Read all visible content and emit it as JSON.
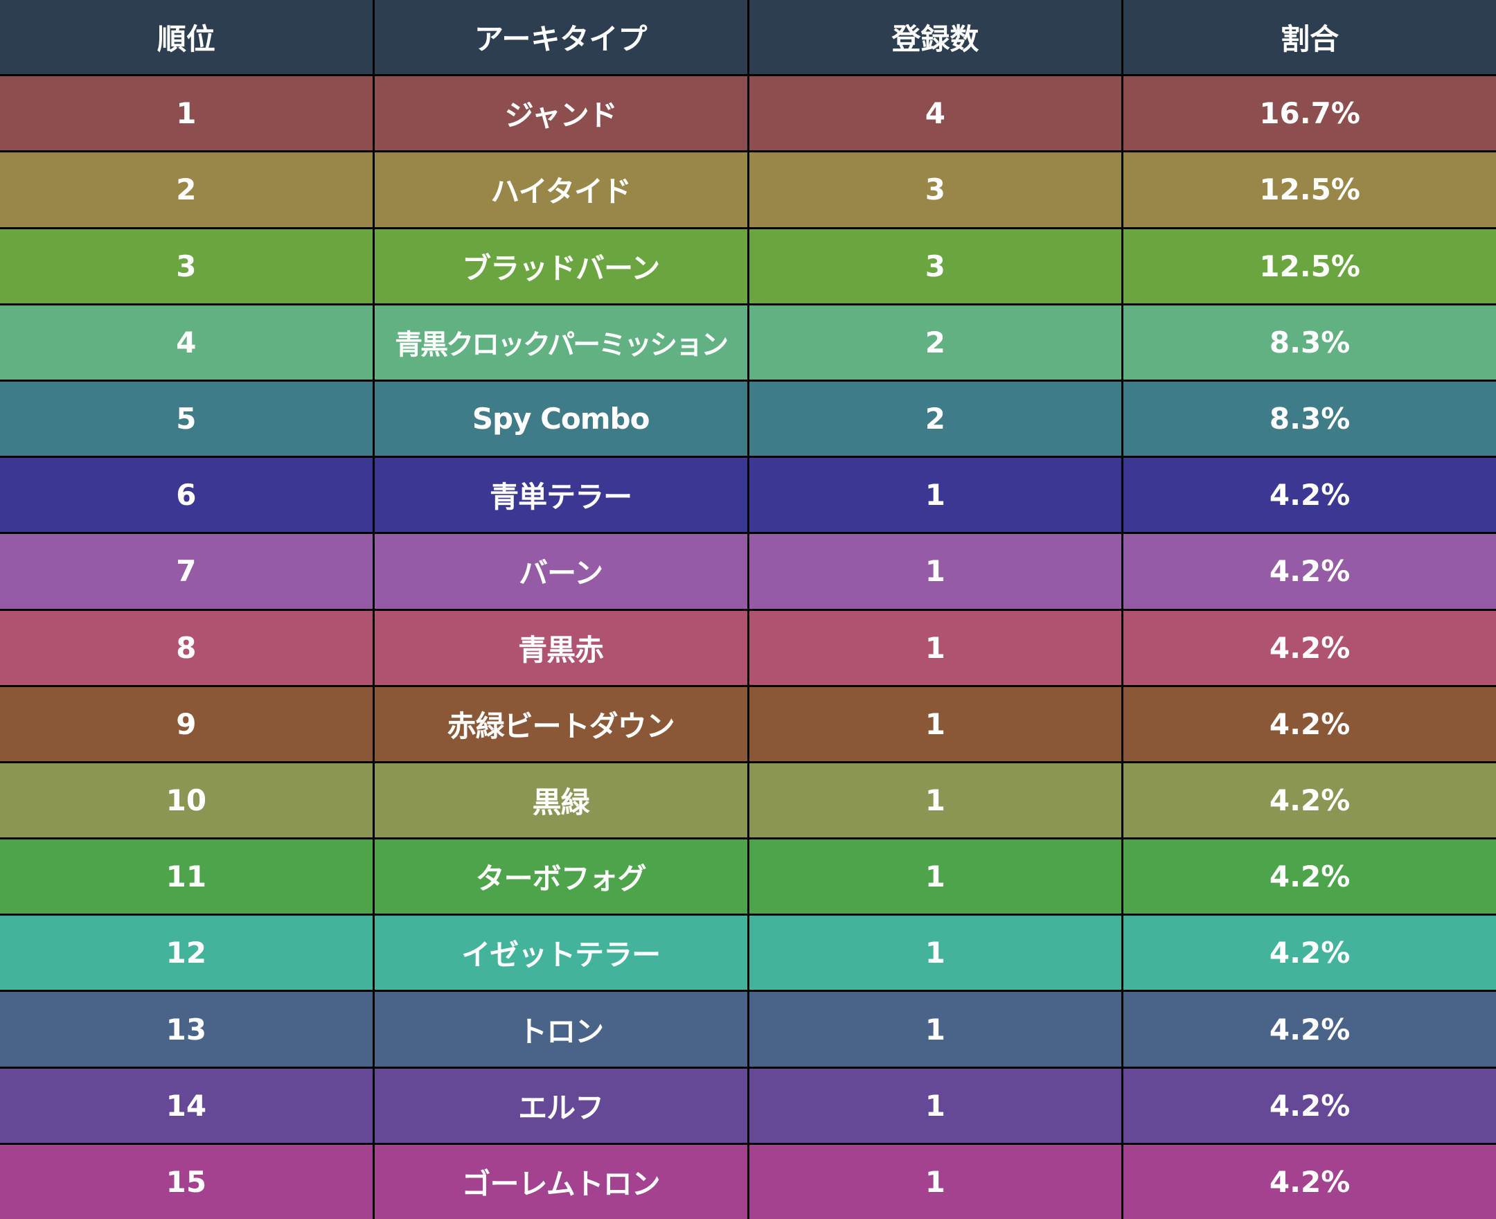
{
  "chart_data": {
    "type": "table",
    "columns": [
      "順位",
      "アーキタイプ",
      "登録数",
      "割合"
    ],
    "rows": [
      {
        "rank": "1",
        "archetype": "ジャンド",
        "count": "4",
        "share": "16.7%",
        "color": "#8c4e4e"
      },
      {
        "rank": "2",
        "archetype": "ハイタイド",
        "count": "3",
        "share": "12.5%",
        "color": "#988747"
      },
      {
        "rank": "3",
        "archetype": "ブラッドバーン",
        "count": "3",
        "share": "12.5%",
        "color": "#6ba540"
      },
      {
        "rank": "4",
        "archetype": "青黒クロックパーミッション",
        "count": "2",
        "share": "8.3%",
        "color": "#62b183"
      },
      {
        "rank": "5",
        "archetype": "Spy Combo",
        "count": "2",
        "share": "8.3%",
        "color": "#3f7c88"
      },
      {
        "rank": "6",
        "archetype": "青単テラー",
        "count": "1",
        "share": "4.2%",
        "color": "#3b3893"
      },
      {
        "rank": "7",
        "archetype": "バーン",
        "count": "1",
        "share": "4.2%",
        "color": "#955ba4"
      },
      {
        "rank": "8",
        "archetype": "青黒赤",
        "count": "1",
        "share": "4.2%",
        "color": "#b0536f"
      },
      {
        "rank": "9",
        "archetype": "赤緑ビートダウン",
        "count": "1",
        "share": "4.2%",
        "color": "#8a5837"
      },
      {
        "rank": "10",
        "archetype": "黒緑",
        "count": "1",
        "share": "4.2%",
        "color": "#8b9554"
      },
      {
        "rank": "11",
        "archetype": "ターボフォグ",
        "count": "1",
        "share": "4.2%",
        "color": "#4ea44b"
      },
      {
        "rank": "12",
        "archetype": "イゼットテラー",
        "count": "1",
        "share": "4.2%",
        "color": "#43b39c"
      },
      {
        "rank": "13",
        "archetype": "トロン",
        "count": "1",
        "share": "4.2%",
        "color": "#4a6388"
      },
      {
        "rank": "14",
        "archetype": "エルフ",
        "count": "1",
        "share": "4.2%",
        "color": "#654896"
      },
      {
        "rank": "15",
        "archetype": "ゴーレムトロン",
        "count": "1",
        "share": "4.2%",
        "color": "#a3428e"
      }
    ],
    "header_color": "#2c3e50",
    "border_color": "#000000"
  }
}
